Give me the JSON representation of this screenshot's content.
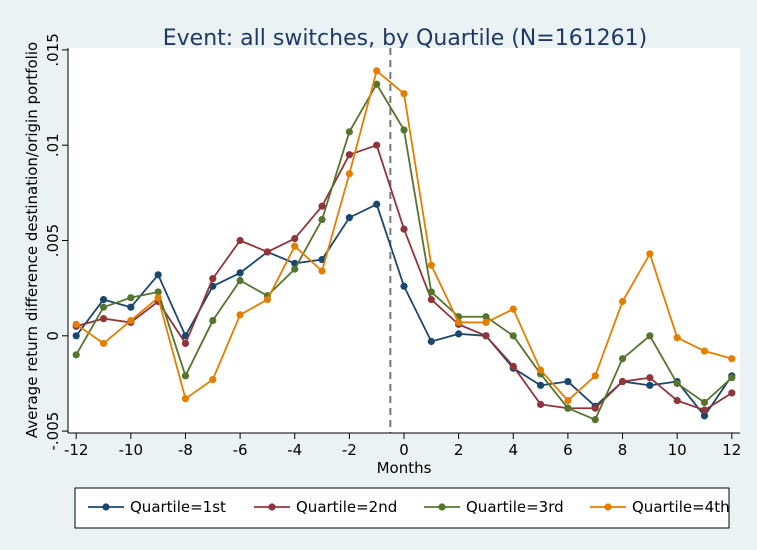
{
  "chart_data": {
    "type": "line",
    "title": "Event: all switches, by Quartile (N=161261)",
    "xlabel": "Months",
    "ylabel": "Average return difference destination/origin portfolio",
    "xlim": [
      -12.3,
      12.3
    ],
    "ylim": [
      -0.0051,
      0.0151
    ],
    "x_ticks": [
      -12,
      -10,
      -8,
      -6,
      -4,
      -2,
      0,
      2,
      4,
      6,
      8,
      10,
      12
    ],
    "x_tick_labels": [
      "-12",
      "-10",
      "-8",
      "-6",
      "-4",
      "-2",
      "0",
      "2",
      "4",
      "6",
      "8",
      "10",
      "12"
    ],
    "y_ticks": [
      -0.005,
      0,
      0.005,
      0.01,
      0.015
    ],
    "y_tick_labels": [
      "-.005",
      "0",
      ".005",
      ".01",
      ".015"
    ],
    "event_line_x": -0.5,
    "grid": false,
    "legend_position": "bottom",
    "x": [
      -12,
      -11,
      -10,
      -9,
      -8,
      -7,
      -6,
      -5,
      -4,
      -3,
      -2,
      -1,
      0,
      1,
      2,
      3,
      4,
      5,
      6,
      7,
      8,
      9,
      10,
      11,
      12
    ],
    "series": [
      {
        "name": "Quartile=1st",
        "color": "#1a476f",
        "values": [
          0.0,
          0.0019,
          0.0015,
          0.0032,
          0.0,
          0.0026,
          0.0033,
          0.0044,
          0.0038,
          0.004,
          0.0062,
          0.0069,
          0.0026,
          -0.0003,
          0.0001,
          0.0,
          -0.0017,
          -0.0026,
          -0.0024,
          -0.0037,
          -0.0024,
          -0.0026,
          -0.0024,
          -0.0042,
          -0.0021
        ]
      },
      {
        "name": "Quartile=2nd",
        "color": "#90353b",
        "values": [
          0.0005,
          0.0009,
          0.0007,
          0.0018,
          -0.0004,
          0.003,
          0.005,
          0.0044,
          0.0051,
          0.0068,
          0.0095,
          0.01,
          0.0056,
          0.0019,
          0.0006,
          0.0,
          -0.0016,
          -0.0036,
          -0.0038,
          -0.0038,
          -0.0024,
          -0.0022,
          -0.0034,
          -0.0039,
          -0.003
        ]
      },
      {
        "name": "Quartile=3rd",
        "color": "#55752f",
        "values": [
          -0.001,
          0.0015,
          0.002,
          0.0023,
          -0.0021,
          0.0008,
          0.0029,
          0.0021,
          0.0035,
          0.0061,
          0.0107,
          0.0132,
          0.0108,
          0.0023,
          0.001,
          0.001,
          0.0,
          -0.002,
          -0.0038,
          -0.0044,
          -0.0012,
          0.0,
          -0.0025,
          -0.0035,
          -0.0022
        ]
      },
      {
        "name": "Quartile=4th",
        "color": "#e37e00",
        "values": [
          0.0006,
          -0.0004,
          0.0008,
          0.002,
          -0.0033,
          -0.0023,
          0.0011,
          0.0019,
          0.0047,
          0.0034,
          0.0085,
          0.0139,
          0.0127,
          0.0037,
          0.0007,
          0.0007,
          0.0014,
          -0.0018,
          -0.0034,
          -0.0021,
          0.0018,
          0.0043,
          -0.0001,
          -0.0008,
          -0.0012
        ]
      }
    ]
  }
}
